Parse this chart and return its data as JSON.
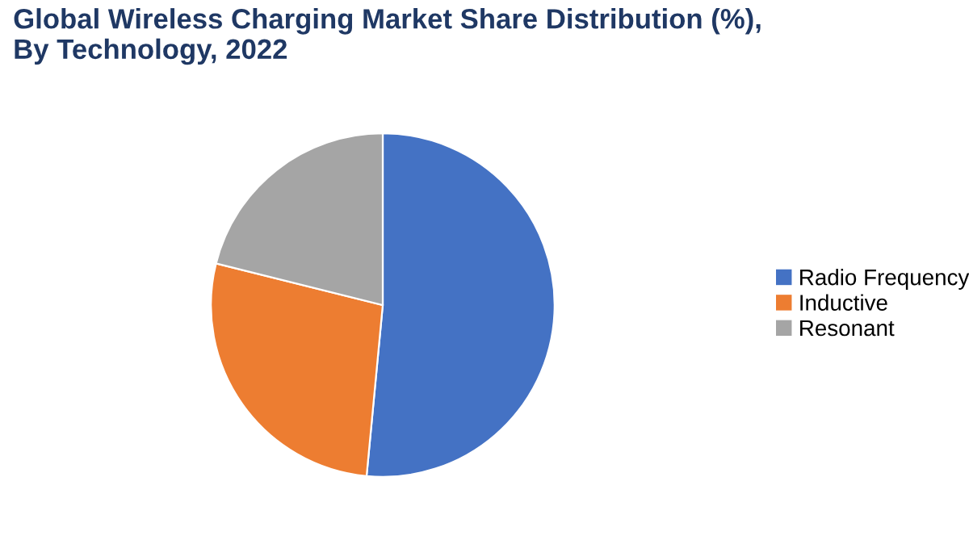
{
  "chart_data": {
    "type": "pie",
    "title": "Global Wireless Charging Market Share Distribution (%), By Technology, 2022",
    "categories": [
      "Radio Frequency",
      "Inductive",
      "Resonant"
    ],
    "values": [
      51.5,
      27.4,
      21.1
    ],
    "colors": [
      "#4472c4",
      "#ed7d31",
      "#a5a5a5"
    ],
    "legend": "right"
  }
}
